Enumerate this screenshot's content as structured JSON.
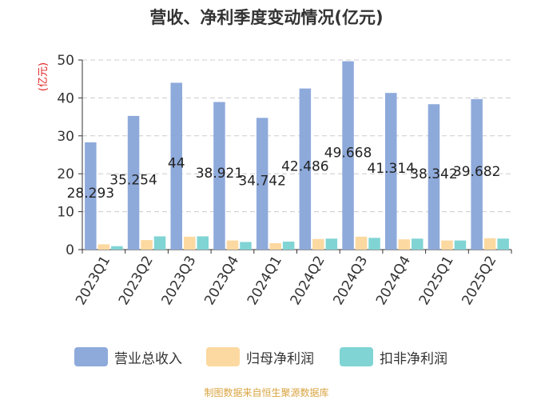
{
  "chart_data": {
    "type": "bar",
    "title": "营收、净利季度变动情况(亿元)",
    "ylabel": "(亿元)",
    "xlabel": "",
    "ylim": [
      0,
      50
    ],
    "yticks": [
      0,
      10,
      20,
      30,
      40,
      50
    ],
    "grid": true,
    "legend_position": "bottom",
    "categories": [
      "2023Q1",
      "2023Q2",
      "2023Q3",
      "2023Q4",
      "2024Q1",
      "2024Q2",
      "2024Q3",
      "2024Q4",
      "2025Q1",
      "2025Q2"
    ],
    "series": [
      {
        "name": "营业总收入",
        "color": "#8eaadb",
        "show_labels": true,
        "values": [
          28.293,
          35.254,
          44,
          38.921,
          34.742,
          42.486,
          49.668,
          41.314,
          38.342,
          39.682
        ]
      },
      {
        "name": "归母净利润",
        "color": "#fcd9a0",
        "show_labels": false,
        "values": [
          1.4,
          2.5,
          3.4,
          2.4,
          1.7,
          2.8,
          3.4,
          2.7,
          2.4,
          3.0
        ]
      },
      {
        "name": "扣非净利润",
        "color": "#80d4d4",
        "show_labels": false,
        "values": [
          0.9,
          3.5,
          3.5,
          2.0,
          2.1,
          2.9,
          3.1,
          2.9,
          2.4,
          2.9
        ]
      }
    ]
  },
  "source_text": "制图数据来自恒生聚源数据库"
}
